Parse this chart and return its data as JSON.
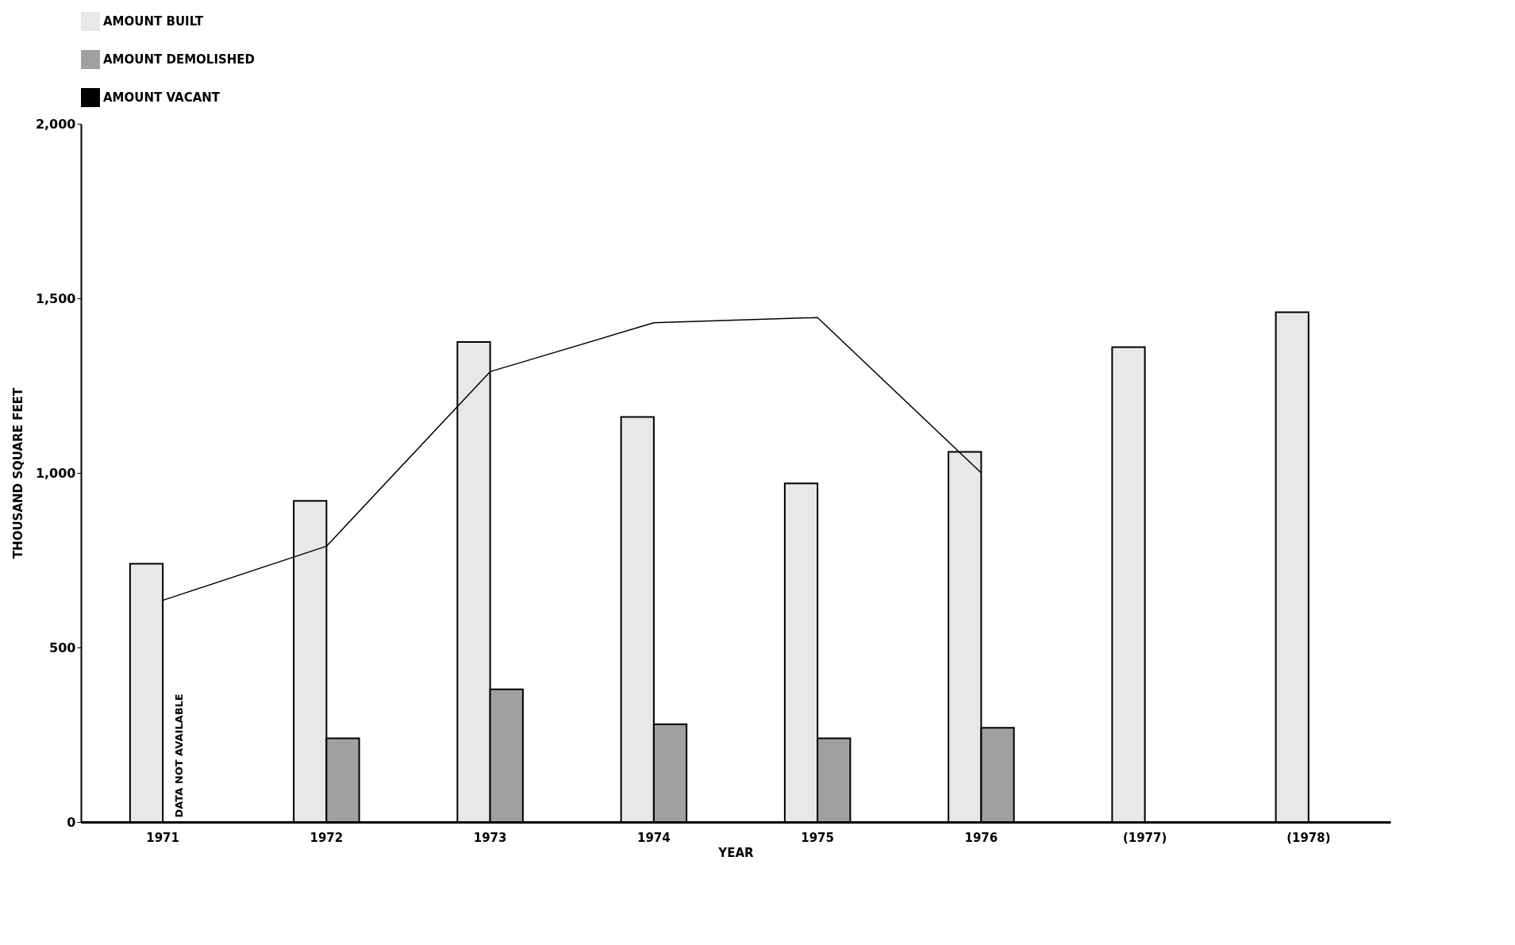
{
  "chart_data": {
    "type": "bar",
    "xlabel": "YEAR",
    "ylabel": "THOUSAND SQUARE FEET",
    "categories": [
      "1971",
      "1972",
      "1973",
      "1974",
      "1975",
      "1976",
      "(1977)",
      "(1978)"
    ],
    "series": [
      {
        "name": "AMOUNT BUILT",
        "color": "#e8e8e8",
        "values": [
          740,
          920,
          1375,
          1160,
          970,
          1060,
          1360,
          1460
        ]
      },
      {
        "name": "AMOUNT DEMOLISHED",
        "color": "#a0a0a0",
        "values": [
          null,
          240,
          380,
          280,
          240,
          270,
          null,
          null
        ]
      },
      {
        "name": "AMOUNT VACANT",
        "type": "line",
        "color": "#000000",
        "values": [
          635,
          790,
          1290,
          1430,
          1445,
          1000,
          null,
          null
        ]
      }
    ],
    "ylim": [
      0,
      2000
    ],
    "yticks": [
      0,
      500,
      {
        "value": 1000,
        "label": "1,000"
      },
      {
        "value": 1500,
        "label": "1,500"
      },
      {
        "value": 2000,
        "label": "2,000"
      }
    ],
    "annotations": [
      {
        "text": "DATA NOT AVAILABLE",
        "x": "1971",
        "y": 190
      }
    ],
    "legend": "top",
    "grid": false
  }
}
